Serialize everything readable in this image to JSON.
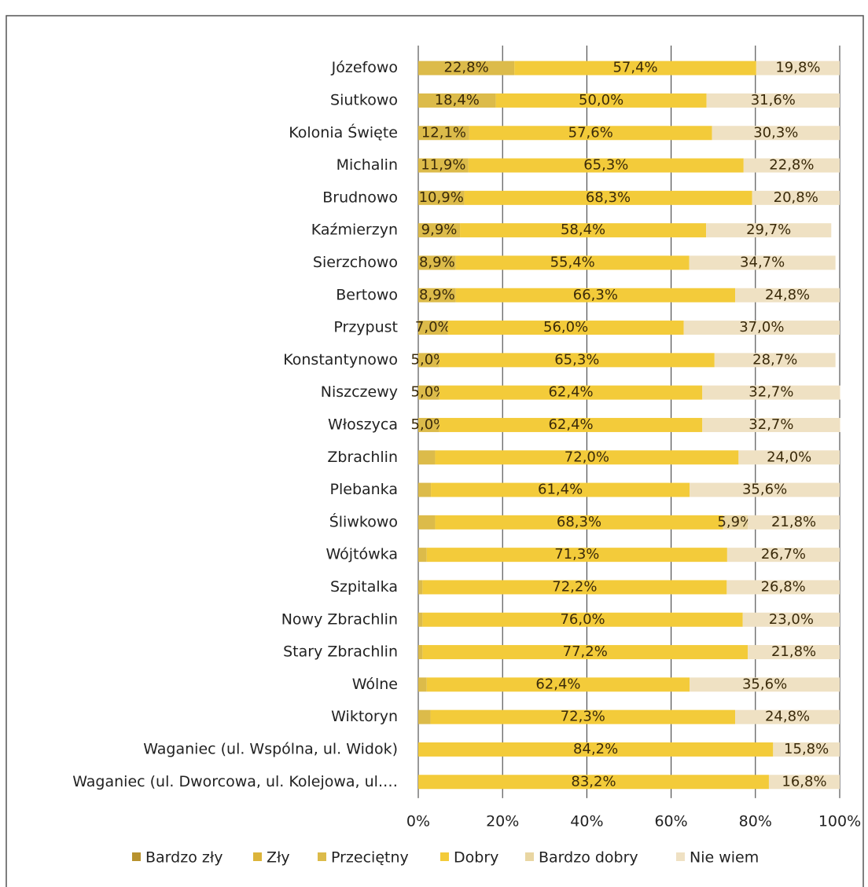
{
  "chart_data": {
    "type": "stacked_bar_horizontal",
    "categories": [
      "Józefowo",
      "Siutkowo",
      "Kolonia Święte",
      "Michalin",
      "Brudnowo",
      "Kaźmierzyn",
      "Sierzchowo",
      "Bertowo",
      "Przypust",
      "Konstantynowo",
      "Niszczewy",
      "Włoszyca",
      "Zbrachlin",
      "Plebanka",
      "Śliwkowo",
      "Wójtówka",
      "Szpitalka",
      "Nowy Zbrachlin",
      "Stary Zbrachlin",
      "Wólne",
      "Wiktoryn",
      "Waganiec (ul. Wspólna, ul. Widok)",
      "Waganiec (ul. Dworcowa, ul. Kolejowa, ul.…"
    ],
    "series": [
      {
        "name": "Bardzo zły",
        "color": "#b8922e",
        "values": [
          null,
          null,
          null,
          null,
          null,
          null,
          null,
          null,
          null,
          null,
          null,
          null,
          null,
          null,
          null,
          null,
          null,
          null,
          null,
          null,
          null,
          null,
          null
        ]
      },
      {
        "name": "Zły",
        "color": "#dcb43a",
        "values": [
          null,
          null,
          null,
          null,
          null,
          null,
          null,
          null,
          null,
          null,
          null,
          null,
          null,
          null,
          null,
          null,
          null,
          null,
          null,
          null,
          null,
          null,
          null
        ]
      },
      {
        "name": "Przeciętny",
        "color": "#dcbb4a",
        "values": [
          22.8,
          18.4,
          12.1,
          11.9,
          10.9,
          9.9,
          8.9,
          8.9,
          7.0,
          5.0,
          5.0,
          5.0,
          4.0,
          3.0,
          4.0,
          2.0,
          1.0,
          1.0,
          1.0,
          2.0,
          2.9,
          null,
          null
        ],
        "value_labels": [
          "22,8%",
          "18,4%",
          "12,1%",
          "11,9%",
          "10,9%",
          "9,9%",
          "8,9%",
          "8,9%",
          "7,0%",
          "5,0%",
          "5,0%",
          "5,0%",
          null,
          null,
          null,
          null,
          null,
          null,
          null,
          null,
          null,
          null,
          null
        ]
      },
      {
        "name": "Dobry",
        "color": "#f3cb3a",
        "values": [
          57.4,
          50.0,
          57.6,
          65.3,
          68.3,
          58.4,
          55.4,
          66.3,
          56.0,
          65.3,
          62.4,
          62.4,
          72.0,
          61.4,
          68.3,
          71.3,
          72.2,
          76.0,
          77.2,
          62.4,
          72.3,
          84.2,
          83.2
        ],
        "value_labels": [
          "57,4%",
          "50,0%",
          "57,6%",
          "65,3%",
          "68,3%",
          "58,4%",
          "55,4%",
          "66,3%",
          "56,0%",
          "65,3%",
          "62,4%",
          "62,4%",
          "72,0%",
          "61,4%",
          "68,3%",
          "71,3%",
          "72,2%",
          "76,0%",
          "77,2%",
          "62,4%",
          "72,3%",
          "84,2%",
          "83,2%"
        ]
      },
      {
        "name": "Bardzo dobry",
        "color": "#e9d6a2",
        "values": [
          null,
          null,
          null,
          null,
          null,
          null,
          null,
          null,
          null,
          null,
          null,
          null,
          null,
          null,
          5.9,
          null,
          null,
          null,
          null,
          null,
          null,
          null,
          null
        ],
        "value_labels": [
          null,
          null,
          null,
          null,
          null,
          null,
          null,
          null,
          null,
          null,
          null,
          null,
          null,
          null,
          "5,9%",
          null,
          null,
          null,
          null,
          null,
          null,
          null,
          null
        ]
      },
      {
        "name": "Nie wiem",
        "color": "#efe1c3",
        "values": [
          19.8,
          31.6,
          30.3,
          22.8,
          20.8,
          29.7,
          34.7,
          24.8,
          37.0,
          28.7,
          32.7,
          32.7,
          24.0,
          35.6,
          21.8,
          26.7,
          26.8,
          23.0,
          21.8,
          35.6,
          24.8,
          15.8,
          16.8
        ],
        "value_labels": [
          "19,8%",
          "31,6%",
          "30,3%",
          "22,8%",
          "20,8%",
          "29,7%",
          "34,7%",
          "24,8%",
          "37,0%",
          "28,7%",
          "32,7%",
          "32,7%",
          "24,0%",
          "35,6%",
          "21,8%",
          "26,7%",
          "26,8%",
          "23,0%",
          "21,8%",
          "35,6%",
          "24,8%",
          "15,8%",
          "16,8%"
        ]
      }
    ],
    "xlim": [
      0,
      100
    ],
    "xticks": [
      {
        "value": 0,
        "label": "0%"
      },
      {
        "value": 20,
        "label": "20%"
      },
      {
        "value": 40,
        "label": "40%"
      },
      {
        "value": 60,
        "label": "60%"
      },
      {
        "value": 80,
        "label": "80%"
      },
      {
        "value": 100,
        "label": "100%"
      }
    ],
    "grid": true,
    "legend": "bottom"
  }
}
